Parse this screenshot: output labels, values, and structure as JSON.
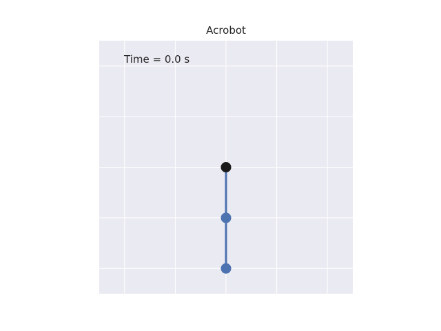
{
  "title": "Acrobot",
  "time_text": "Time = 0.0 s",
  "colors": {
    "axes_background": "#eaeaf2",
    "grid": "#ffffff",
    "link": "#4c72b0",
    "pivot": "#1a1a1a",
    "joint": "#4c72b0",
    "text": "#262626"
  },
  "scene": {
    "xlim": [
      -2.5,
      2.5
    ],
    "ylim": [
      -2.5,
      2.5
    ],
    "grid": true,
    "grid_ticks": [
      -2,
      -1,
      0,
      1,
      2
    ],
    "pivot": [
      0,
      0
    ],
    "joints": [
      [
        0,
        -1
      ],
      [
        0,
        -2
      ]
    ]
  }
}
